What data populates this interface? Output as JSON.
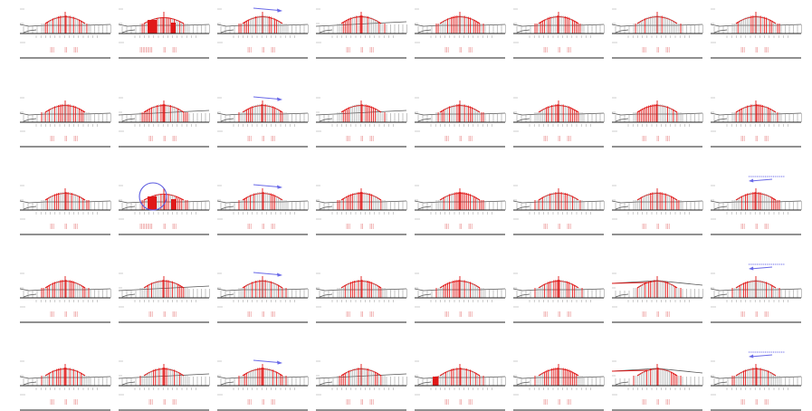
{
  "sheet": {
    "rows": 5,
    "cols": 8,
    "colors": {
      "highlight": "#e01818",
      "structure": "#8a8a8a",
      "baseline": "#222222",
      "annotation": "#6a6ae8",
      "background": "#ffffff"
    }
  },
  "panels": [
    {
      "variant": "dome",
      "annotation": "none"
    },
    {
      "variant": "red-block",
      "annotation": "none"
    },
    {
      "variant": "dome",
      "annotation": "arrow-right"
    },
    {
      "variant": "flat",
      "annotation": "none"
    },
    {
      "variant": "dome",
      "annotation": "none"
    },
    {
      "variant": "dome",
      "annotation": "none"
    },
    {
      "variant": "dome",
      "annotation": "none"
    },
    {
      "variant": "dome-right",
      "annotation": "none"
    },
    {
      "variant": "dome",
      "annotation": "none"
    },
    {
      "variant": "flat",
      "annotation": "none"
    },
    {
      "variant": "dome",
      "annotation": "arrow-right"
    },
    {
      "variant": "flat",
      "annotation": "none"
    },
    {
      "variant": "dome",
      "annotation": "none"
    },
    {
      "variant": "dome",
      "annotation": "none"
    },
    {
      "variant": "dome",
      "annotation": "none"
    },
    {
      "variant": "dome",
      "annotation": "none"
    },
    {
      "variant": "dome",
      "annotation": "none"
    },
    {
      "variant": "red-block",
      "annotation": "circle"
    },
    {
      "variant": "dome",
      "annotation": "arrow-right"
    },
    {
      "variant": "dome",
      "annotation": "none"
    },
    {
      "variant": "dome",
      "annotation": "none"
    },
    {
      "variant": "dome",
      "annotation": "none"
    },
    {
      "variant": "dome",
      "annotation": "none"
    },
    {
      "variant": "dome",
      "annotation": "arrow-left-note"
    },
    {
      "variant": "dome",
      "annotation": "none"
    },
    {
      "variant": "flat",
      "annotation": "none"
    },
    {
      "variant": "dome",
      "annotation": "arrow-right"
    },
    {
      "variant": "dome",
      "annotation": "none"
    },
    {
      "variant": "dome",
      "annotation": "none"
    },
    {
      "variant": "dome",
      "annotation": "none"
    },
    {
      "variant": "slope",
      "annotation": "none"
    },
    {
      "variant": "dome",
      "annotation": "arrow-left-note"
    },
    {
      "variant": "dome",
      "annotation": "none"
    },
    {
      "variant": "flat",
      "annotation": "none"
    },
    {
      "variant": "dome",
      "annotation": "arrow-right"
    },
    {
      "variant": "flat",
      "annotation": "none"
    },
    {
      "variant": "red-left",
      "annotation": "none"
    },
    {
      "variant": "dome",
      "annotation": "none"
    },
    {
      "variant": "slope",
      "annotation": "none"
    },
    {
      "variant": "dome",
      "annotation": "arrow-left-note"
    }
  ]
}
